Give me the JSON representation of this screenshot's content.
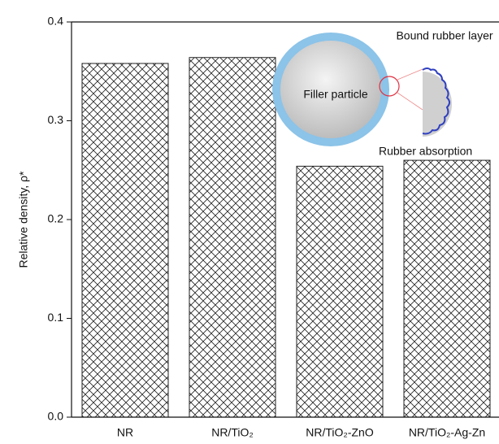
{
  "chart_data": {
    "type": "bar",
    "y_label": "Relative density, ρ*",
    "categories": [
      "NR",
      "NR/TiO₂",
      "NR/TiO₂-ZnO",
      "NR/TiO₂-Ag-Zn"
    ],
    "values": [
      0.358,
      0.364,
      0.254,
      0.26
    ],
    "color": "#222222",
    "ylim": [
      0,
      0.4
    ],
    "yticks": [
      {
        "value": 0,
        "label": "0.0"
      },
      0.1,
      0.2,
      0.3,
      0.4
    ],
    "annotations": [
      "Bound rubber layer",
      "Filler particle",
      "Rubber absorption"
    ]
  }
}
